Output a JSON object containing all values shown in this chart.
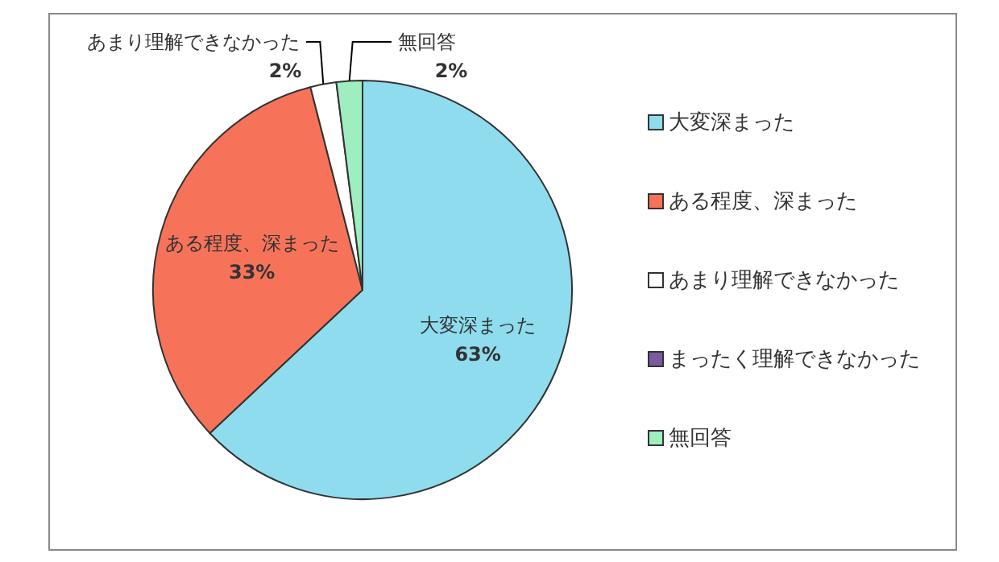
{
  "chart_data": {
    "type": "pie",
    "categories": [
      "大変深まった",
      "ある程度、深まった",
      "あまり理解できなかった",
      "まったく理解できなかった",
      "無回答"
    ],
    "values": [
      63,
      33,
      2,
      0,
      2
    ],
    "colors": [
      "#8edcee",
      "#f6735a",
      "#ffffff",
      "#7a5aa0",
      "#9eeec0"
    ],
    "value_labels": [
      "63%",
      "33%",
      "2%",
      null,
      "2%"
    ],
    "legend": "right"
  }
}
